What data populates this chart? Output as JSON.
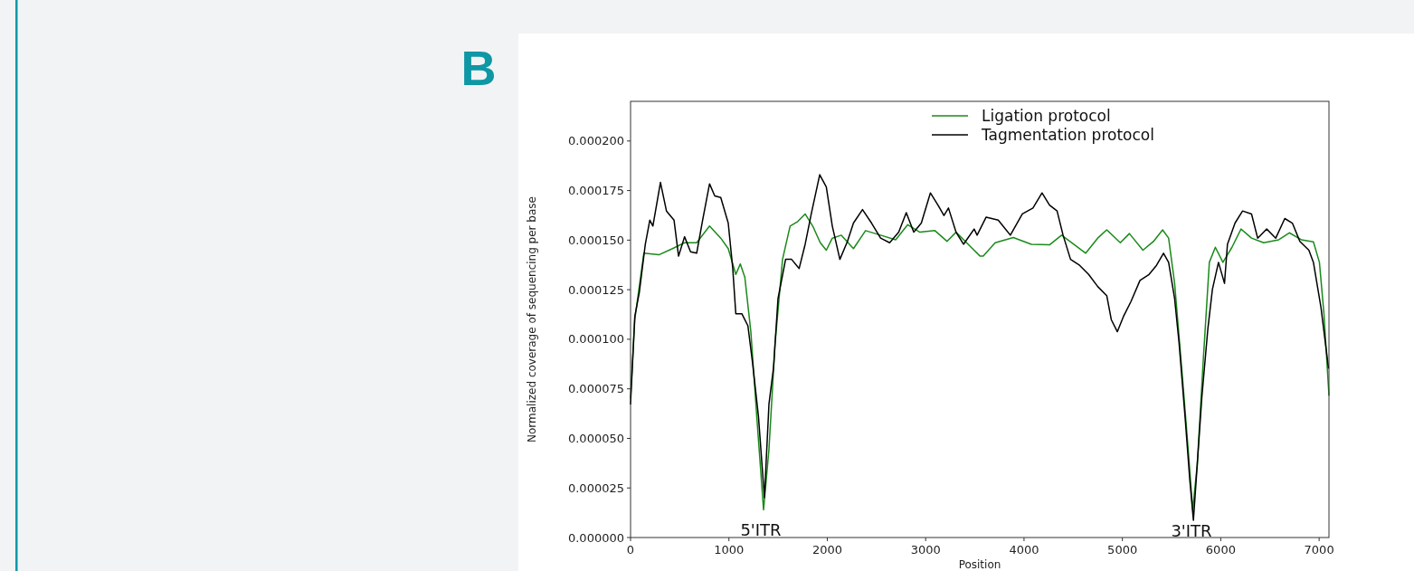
{
  "chart_data": {
    "type": "line",
    "xlabel": "Position",
    "ylabel": "Normalized coverage of sequencing per base",
    "xlim": [
      0,
      7100
    ],
    "xticks": [
      0,
      1000,
      2000,
      3000,
      4000,
      5000,
      6000,
      7000
    ],
    "ylim": [
      0,
      0.00022
    ],
    "yticks": [
      {
        "value": 0,
        "label": "0.000000"
      },
      {
        "value": 2.5e-05,
        "label": "0.000025"
      },
      {
        "value": 5e-05,
        "label": "0.000050"
      },
      {
        "value": 7.5e-05,
        "label": "0.000075"
      },
      {
        "value": 0.0001,
        "label": "0.000100"
      },
      {
        "value": 0.000125,
        "label": "0.000125"
      },
      {
        "value": 0.00015,
        "label": "0.000150"
      },
      {
        "value": 0.000175,
        "label": "0.000175"
      },
      {
        "value": 0.0002,
        "label": "0.000200"
      }
    ],
    "legend": "top right",
    "grid": false,
    "annotations": [
      "B",
      "5'ITR",
      "3'ITR"
    ],
    "series": [
      {
        "name": "Ligation protocol",
        "color": "#1a8a1a",
        "x": [
          0,
          43,
          135,
          288,
          426,
          549,
          672,
          803,
          917,
          993,
          1070,
          1116,
          1162,
          1223,
          1285,
          1352,
          1407,
          1469,
          1545,
          1622,
          1699,
          1775,
          1852,
          1929,
          1990,
          2051,
          2143,
          2266,
          2389,
          2542,
          2695,
          2818,
          2941,
          3094,
          3217,
          3309,
          3462,
          3554,
          3585,
          3707,
          3891,
          4075,
          4259,
          4382,
          4505,
          4627,
          4749,
          4841,
          4979,
          5071,
          5209,
          5317,
          5409,
          5470,
          5531,
          5608,
          5669,
          5715,
          5761,
          5823,
          5884,
          5945,
          6022,
          6114,
          6206,
          6313,
          6436,
          6590,
          6697,
          6819,
          6942,
          7003,
          7049,
          7100
        ],
        "values": [
          7.03e-05,
          0.0001099,
          0.0001434,
          0.0001426,
          0.0001457,
          0.0001487,
          0.0001487,
          0.0001571,
          0.000151,
          0.0001457,
          0.0001327,
          0.000138,
          0.0001312,
          0.0001038,
          5.97e-05,
          1.4e-05,
          4.44e-05,
          9.77e-05,
          0.0001403,
          0.0001571,
          0.0001594,
          0.0001632,
          0.0001571,
          0.0001487,
          0.0001449,
          0.000151,
          0.0001525,
          0.0001457,
          0.0001548,
          0.0001525,
          0.0001502,
          0.0001578,
          0.000154,
          0.0001548,
          0.0001494,
          0.000154,
          0.0001464,
          0.0001419,
          0.0001419,
          0.0001487,
          0.0001513,
          0.0001479,
          0.0001476,
          0.0001525,
          0.0001479,
          0.0001434,
          0.000151,
          0.0001552,
          0.0001487,
          0.0001533,
          0.0001449,
          0.0001494,
          0.0001552,
          0.000151,
          0.0001282,
          8.25e-05,
          4.44e-05,
          1.4e-05,
          3.68e-05,
          9.01e-05,
          0.0001388,
          0.0001464,
          0.0001388,
          0.0001464,
          0.0001556,
          0.000151,
          0.0001487,
          0.0001502,
          0.0001537,
          0.0001502,
          0.0001491,
          0.0001388,
          0.0001129,
          7.18e-05
        ]
      },
      {
        "name": "Tagmentation protocol",
        "color": "#000000",
        "x": [
          0,
          43,
          89,
          150,
          196,
          227,
          304,
          365,
          442,
          488,
          549,
          610,
          672,
          733,
          803,
          856,
          917,
          993,
          1039,
          1070,
          1131,
          1193,
          1239,
          1300,
          1361,
          1407,
          1453,
          1499,
          1576,
          1637,
          1714,
          1775,
          1837,
          1923,
          1990,
          2051,
          2128,
          2205,
          2266,
          2358,
          2450,
          2542,
          2634,
          2726,
          2803,
          2879,
          2956,
          3048,
          3125,
          3186,
          3232,
          3309,
          3385,
          3493,
          3523,
          3615,
          3738,
          3861,
          3983,
          4091,
          4183,
          4259,
          4336,
          4397,
          4473,
          4565,
          4657,
          4749,
          4841,
          4887,
          4949,
          5010,
          5087,
          5179,
          5271,
          5347,
          5418,
          5470,
          5531,
          5577,
          5639,
          5685,
          5722,
          5761,
          5807,
          5869,
          5915,
          5977,
          6038,
          6068,
          6145,
          6222,
          6313,
          6375,
          6467,
          6559,
          6651,
          6728,
          6804,
          6896,
          6942,
          7019,
          7095
        ],
        "values": [
          6.73e-05,
          0.0001114,
          0.0001236,
          0.0001479,
          0.0001601,
          0.0001571,
          0.0001791,
          0.0001647,
          0.0001601,
          0.0001419,
          0.0001517,
          0.0001441,
          0.0001434,
          0.0001601,
          0.0001784,
          0.0001723,
          0.0001715,
          0.0001586,
          0.0001357,
          0.0001129,
          0.0001129,
          0.0001068,
          8.86e-05,
          6.12e-05,
          2.01e-05,
          6.73e-05,
          8.55e-05,
          0.0001205,
          0.0001403,
          0.0001403,
          0.0001357,
          0.0001479,
          0.0001632,
          0.000183,
          0.0001768,
          0.0001571,
          0.0001403,
          0.0001494,
          0.0001586,
          0.0001654,
          0.0001586,
          0.000151,
          0.0001487,
          0.000154,
          0.0001639,
          0.000154,
          0.0001586,
          0.0001738,
          0.0001677,
          0.0001624,
          0.0001662,
          0.000154,
          0.0001479,
          0.0001556,
          0.0001525,
          0.0001616,
          0.0001601,
          0.0001525,
          0.0001632,
          0.0001662,
          0.0001738,
          0.0001677,
          0.0001647,
          0.0001525,
          0.0001403,
          0.0001373,
          0.0001327,
          0.0001266,
          0.000122,
          0.0001099,
          0.0001038,
          0.0001114,
          0.000119,
          0.0001297,
          0.0001327,
          0.0001373,
          0.0001434,
          0.0001388,
          0.0001205,
          9.77e-05,
          5.97e-05,
          2.92e-05,
          8.7e-06,
          3.68e-05,
          7.03e-05,
          0.0001053,
          0.0001251,
          0.0001388,
          0.0001282,
          0.0001479,
          0.0001586,
          0.0001647,
          0.0001632,
          0.000151,
          0.0001556,
          0.000151,
          0.0001609,
          0.0001586,
          0.0001494,
          0.0001449,
          0.0001388,
          0.000116,
          8.55e-05
        ]
      }
    ]
  }
}
